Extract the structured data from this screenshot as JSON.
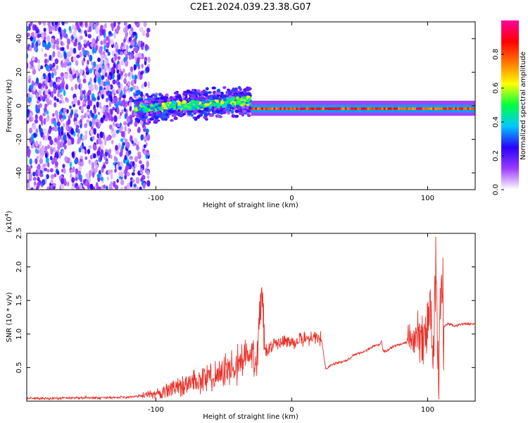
{
  "title": "C2E1.2024.039.23.38.G07",
  "colors": {
    "snr_line": "#e8322a",
    "axis": "#000000",
    "background": "#ffffff"
  },
  "colorbar": {
    "label": "Normalized spectral amplitude",
    "ticks": [
      "0.0",
      "0.2",
      "0.4",
      "0.6",
      "0.8"
    ],
    "range": [
      0,
      1
    ],
    "colormap": [
      "#ffffff",
      "#9a3cff",
      "#2a00ff",
      "#00c8ff",
      "#00ff40",
      "#ffff00",
      "#ff7800",
      "#ff0000",
      "#ff00a0"
    ]
  },
  "chart_data": [
    {
      "type": "heatmap",
      "xlabel": "Height of straight line (km)",
      "ylabel": "Frequency (Hz)",
      "xlim": [
        -195,
        135
      ],
      "ylim": [
        -50,
        50
      ],
      "xticks": [
        -100,
        0,
        100
      ],
      "xtick_labels": [
        "-100",
        "0",
        "100"
      ],
      "yticks": [
        -40,
        -20,
        0,
        20,
        40
      ],
      "ytick_labels": [
        "-40",
        "-20",
        "0",
        "20",
        "40"
      ],
      "description_series": [
        {
          "x_range": [
            -195,
            -115
          ],
          "freq_spread": 48,
          "amplitude": 0.25
        },
        {
          "x_range": [
            -115,
            -30
          ],
          "freq_center": 0,
          "freq_spread": 7,
          "amplitude": 0.5
        },
        {
          "x_range": [
            -30,
            135
          ],
          "freq_center": -2,
          "freq_spread": 2,
          "amplitude": 0.9
        }
      ]
    },
    {
      "type": "line",
      "xlabel": "Height of straight line (km)",
      "ylabel": "SNR (10 * v/v)",
      "yscale_label": "(x10",
      "yscale_exp": "4",
      "yscale_close": ")",
      "xlim": [
        -195,
        135
      ],
      "ylim": [
        0,
        2.5
      ],
      "xticks": [
        -100,
        0,
        100
      ],
      "xtick_labels": [
        "-100",
        "0",
        "100"
      ],
      "yticks": [
        0.5,
        1.0,
        1.5,
        2.0,
        2.5
      ],
      "ytick_labels": [
        "0.5",
        "1.0",
        "1.5",
        "2.0",
        "2.5"
      ],
      "series": [
        {
          "x": [
            -195,
            -180,
            -160,
            -140,
            -120,
            -105,
            -95,
            -85,
            -75,
            -65,
            -55,
            -45,
            -35,
            -25,
            -22,
            -20,
            -15,
            -10,
            -5,
            0,
            5,
            10,
            15,
            20,
            22,
            25,
            28,
            30,
            40,
            45,
            50,
            55,
            60,
            65,
            66,
            67,
            68,
            70,
            75,
            80,
            82,
            85,
            90,
            92,
            94,
            96,
            98,
            100,
            102,
            104,
            106,
            108,
            110,
            112,
            115,
            120,
            125,
            130,
            135
          ],
          "y": [
            0.04,
            0.04,
            0.05,
            0.05,
            0.06,
            0.09,
            0.14,
            0.2,
            0.27,
            0.33,
            0.4,
            0.48,
            0.62,
            0.72,
            1.7,
            0.72,
            0.8,
            0.86,
            0.88,
            0.88,
            0.9,
            0.93,
            0.95,
            0.96,
            0.9,
            0.48,
            0.52,
            0.55,
            0.6,
            0.68,
            0.72,
            0.75,
            0.82,
            0.85,
            0.9,
            0.78,
            0.74,
            0.75,
            0.82,
            0.85,
            0.86,
            0.88,
            0.92,
            0.95,
            1.0,
            1.05,
            1.0,
            1.1,
            1.6,
            0.3,
            2.05,
            0.1,
            1.8,
            1.1,
            1.15,
            1.12,
            1.15,
            1.15,
            1.15
          ],
          "noise": true
        }
      ]
    }
  ]
}
